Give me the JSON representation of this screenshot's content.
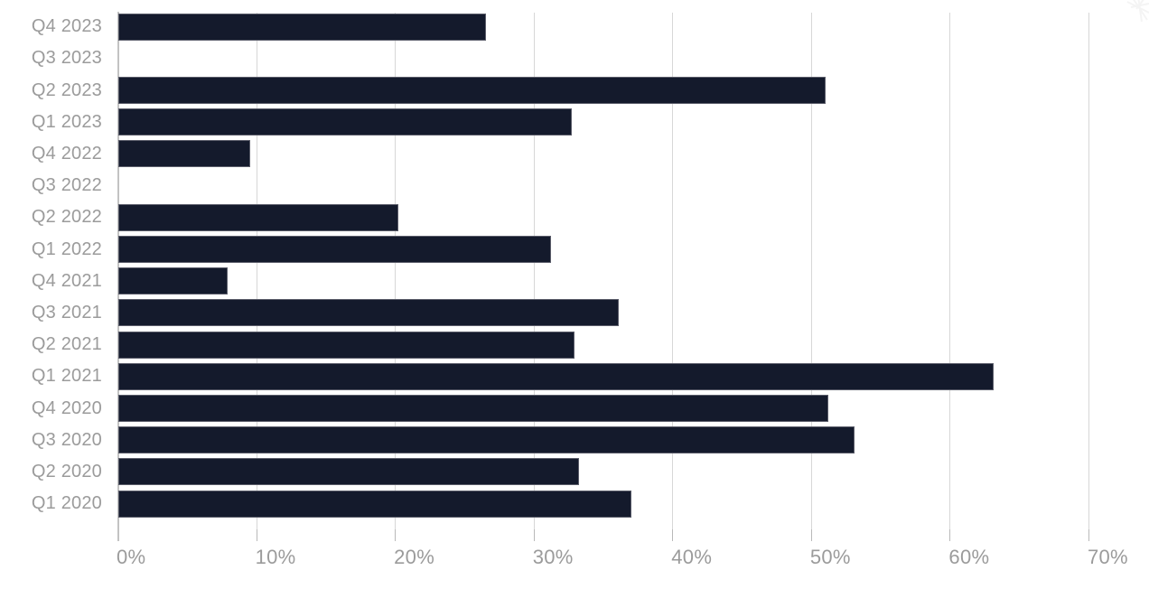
{
  "chart_data": {
    "type": "bar",
    "orientation": "horizontal",
    "title": "",
    "xlabel": "",
    "ylabel": "",
    "categories": [
      "Q4 2023",
      "Q3 2023",
      "Q2 2023",
      "Q1 2023",
      "Q4 2022",
      "Q3 2022",
      "Q2 2022",
      "Q1 2022",
      "Q4 2021",
      "Q3 2021",
      "Q2 2021",
      "Q1 2021",
      "Q4 2020",
      "Q3 2020",
      "Q2 2020",
      "Q1 2020"
    ],
    "values": [
      26.5,
      0,
      51.0,
      32.7,
      9.5,
      0,
      20.2,
      31.2,
      7.9,
      36.1,
      32.9,
      63.1,
      51.2,
      53.1,
      33.2,
      37.0
    ],
    "value_unit": "%",
    "x_ticks": [
      "0%",
      "10%",
      "20%",
      "30%",
      "40%",
      "50%",
      "60%",
      "70%"
    ],
    "x_tick_values": [
      0,
      10,
      20,
      30,
      40,
      50,
      60,
      70
    ],
    "xlim": [
      0,
      74
    ],
    "grid": "vertical-gridlines-on",
    "legend": "none",
    "colors": {
      "bar": "#141a2c",
      "bar_outline": "#96969e",
      "labels": "#9b9b9b",
      "gridline": "#d7d7d7",
      "axis_line": "#c3c3c3",
      "background": "#ffffff"
    }
  }
}
